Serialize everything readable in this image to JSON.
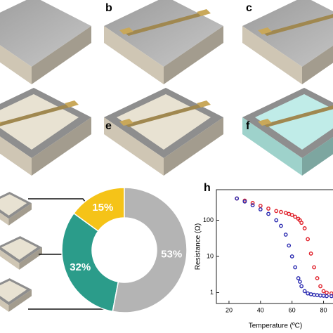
{
  "panel_labels": [
    "b",
    "c",
    "e",
    "f"
  ],
  "chart_data": [
    {
      "type": "pie",
      "donut": true,
      "values": [
        15,
        32,
        53
      ],
      "value_labels": [
        "15%",
        "32%",
        "53%"
      ],
      "colors": [
        "#f5c318",
        "#2b9c8a",
        "#b4b4b4"
      ]
    },
    {
      "type": "line",
      "panel": "h",
      "x_label": "Temperature (ºC)",
      "y_label": "Resistance (Ω)",
      "y_log": true,
      "xlim": [
        12,
        86
      ],
      "xticks": [
        20,
        40,
        60,
        80
      ],
      "ylim": [
        0.5,
        700
      ],
      "yticks": [
        1,
        10,
        100
      ],
      "x": [
        25,
        30,
        35,
        40,
        45,
        50,
        53,
        56,
        58,
        60,
        62,
        64,
        65,
        66,
        68,
        70,
        72,
        74,
        76,
        78,
        80,
        82,
        85
      ],
      "series": [
        {
          "color": "#e0202a",
          "values": [
            400,
            350,
            300,
            250,
            210,
            180,
            170,
            160,
            150,
            140,
            125,
            110,
            100,
            85,
            60,
            30,
            12,
            5,
            2.5,
            1.5,
            1.1,
            1.0,
            0.95
          ]
        },
        {
          "color": "#2a2ab0",
          "values": [
            400,
            330,
            260,
            200,
            150,
            100,
            70,
            40,
            20,
            10,
            5,
            2.5,
            2,
            1.5,
            1.1,
            0.95,
            0.9,
            0.87,
            0.85,
            0.83,
            0.82,
            0.8,
            0.8
          ]
        }
      ]
    }
  ]
}
